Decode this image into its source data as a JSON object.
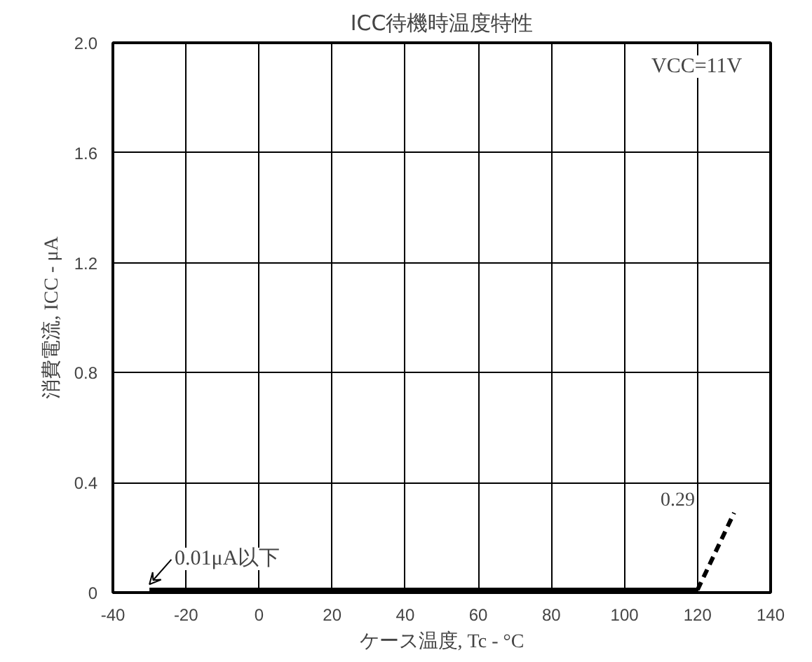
{
  "chart_data": {
    "type": "line",
    "title": "ICC待機時温度特性",
    "xlabel": "ケース温度, Tc - °C",
    "ylabel": "消費電流, ICC - μA",
    "xlim": [
      -40,
      140
    ],
    "xticks": [
      -40,
      -20,
      0,
      20,
      40,
      60,
      80,
      100,
      120,
      140
    ],
    "ylim": [
      0,
      2.0
    ],
    "yticks": [
      {
        "value": 0,
        "label": "0"
      },
      0.4,
      0.8,
      1.2,
      1.6,
      {
        "value": 2.0,
        "label": "2.0"
      }
    ],
    "grid": true,
    "marker": "none",
    "series": [
      {
        "color": "#000000",
        "x": [
          -30,
          120
        ],
        "values": [
          0.01,
          0.01
        ],
        "line_style": "solid"
      },
      {
        "color": "#000000",
        "x": [
          120,
          130
        ],
        "values": [
          0.01,
          0.29
        ],
        "line_style": "dashed"
      }
    ],
    "annotations": [
      {
        "text": "VCC=11V"
      },
      {
        "text": "0.29",
        "x": 130,
        "y": 0.29
      },
      {
        "text": "0.01μA以下",
        "x": -30,
        "y": 0.01
      }
    ]
  }
}
